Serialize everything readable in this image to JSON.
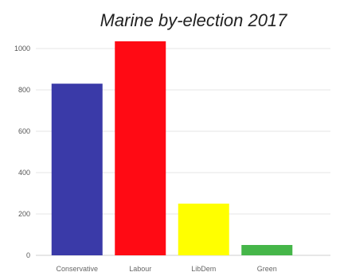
{
  "chart_data": {
    "type": "bar",
    "title": "Marine by-election 2017",
    "categories": [
      "Conservative",
      "Labour",
      "LibDem",
      "Green"
    ],
    "values": [
      830,
      1035,
      250,
      50
    ],
    "colors": [
      "#3a3aa8",
      "#ff0a14",
      "#ffff00",
      "#45b649"
    ],
    "ylim": [
      0,
      1100
    ],
    "yticks": [
      0,
      200,
      400,
      600,
      800,
      1000
    ],
    "grid": true,
    "xlabel": "",
    "ylabel": ""
  }
}
